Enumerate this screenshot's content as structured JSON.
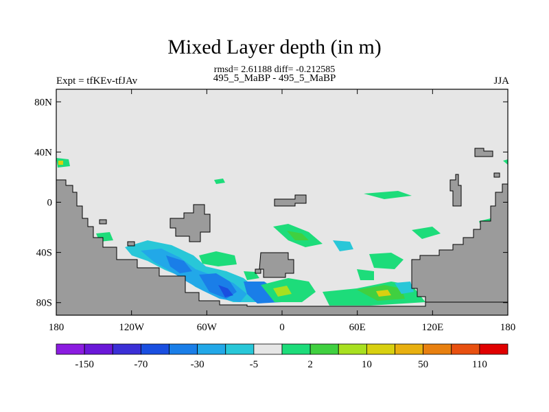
{
  "figure": {
    "title": "Mixed Layer depth (in m)",
    "stats": "rmsd= 2.61188 diff= -0.212585",
    "subtitle": "495_5_MaBP - 495_5_MaBP",
    "left_label": "Expt = tfKEv-tfJAv",
    "right_label": "JJA"
  },
  "axes": {
    "y_ticks": [
      "80N",
      "40N",
      "0",
      "40S",
      "80S"
    ],
    "y_values": [
      80,
      40,
      0,
      -40,
      -80
    ],
    "x_ticks": [
      "180",
      "120W",
      "60W",
      "0",
      "60E",
      "120E",
      "180"
    ],
    "x_values": [
      -180,
      -120,
      -60,
      0,
      60,
      120,
      180
    ],
    "lon_range": [
      -180,
      180
    ],
    "lat_range": [
      -90,
      90
    ]
  },
  "colorbar": {
    "labels": [
      "-150",
      "-70",
      "-30",
      "-5",
      "2",
      "10",
      "50",
      "110"
    ],
    "colors": [
      "#8b1ce0",
      "#6a18d8",
      "#3b2fd6",
      "#1a4fe0",
      "#1a7ee8",
      "#22a8e8",
      "#28c7d8",
      "#e6e6e6",
      "#1ddc7a",
      "#40d040",
      "#a8e020",
      "#d8d010",
      "#e8b010",
      "#e88010",
      "#e85010",
      "#e00000"
    ]
  },
  "colors": {
    "land": "#9b9b9b",
    "ocean_neutral": "#e6e6e6",
    "coast": "#000000"
  }
}
